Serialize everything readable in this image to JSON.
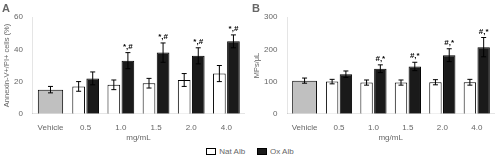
{
  "chart_data": [
    {
      "type": "bar",
      "title": "A",
      "xlabel": "mg/mL",
      "ylabel": "Annexin-V+/PI+ cells (%)",
      "categories": [
        "Vehicle",
        "0.5",
        "1.0",
        "1.5",
        "2.0",
        "4.0"
      ],
      "series": [
        {
          "name": "Nat Alb",
          "color": "#ffffff",
          "colors": [
            "#c0c0c0",
            "#ffffff",
            "#ffffff",
            "#ffffff",
            "#ffffff",
            "#ffffff"
          ],
          "values": [
            15,
            17,
            18,
            19,
            21,
            25
          ],
          "errors": [
            2,
            3,
            3,
            3,
            4,
            5
          ]
        },
        {
          "name": "Ox Alb",
          "color": "#1a1a1a",
          "values": [
            null,
            22,
            33,
            38,
            36,
            45
          ],
          "errors": [
            null,
            4,
            5,
            6,
            5,
            4
          ],
          "annotations": [
            null,
            null,
            "*,#",
            "*,#",
            "*,#",
            "*,#"
          ]
        }
      ],
      "ylim": [
        0,
        60
      ],
      "yticks": [
        0,
        20,
        40,
        60
      ],
      "grid": false,
      "legend": "bottom"
    },
    {
      "type": "bar",
      "title": "B",
      "xlabel": "mg/mL",
      "ylabel": "MPs/μL",
      "categories": [
        "Vehicle",
        "0.5",
        "1.0",
        "1.5",
        "2.0",
        "4.0"
      ],
      "series": [
        {
          "name": "Nat Alb",
          "color": "#ffffff",
          "colors": [
            "#c0c0c0",
            "#ffffff",
            "#ffffff",
            "#ffffff",
            "#ffffff",
            "#ffffff"
          ],
          "values": [
            103,
            100,
            97,
            97,
            98,
            98
          ],
          "errors": [
            8,
            7,
            8,
            8,
            8,
            9
          ]
        },
        {
          "name": "Ox Alb",
          "color": "#1a1a1a",
          "values": [
            null,
            123,
            140,
            147,
            182,
            207
          ],
          "errors": [
            null,
            10,
            12,
            13,
            20,
            30
          ],
          "annotations": [
            null,
            null,
            "#,*",
            "#,*",
            "#,*",
            "#,*"
          ]
        }
      ],
      "ylim": [
        0,
        300
      ],
      "yticks": [
        0,
        100,
        200,
        300
      ],
      "grid": false,
      "legend": "bottom"
    }
  ]
}
